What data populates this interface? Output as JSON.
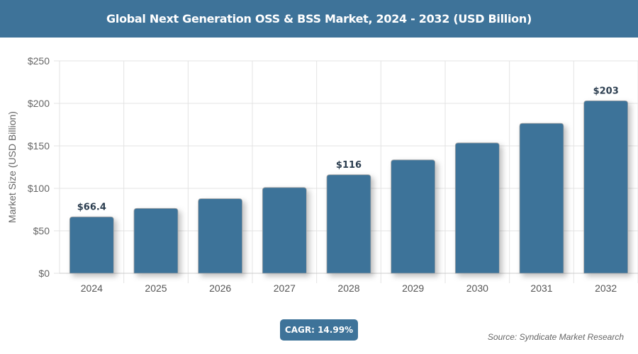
{
  "title": "Global Next Generation OSS & BSS Market, 2024 - 2032 (USD Billion)",
  "cagr_label": "CAGR: 14.99%",
  "source": "Source: Syndicate Market Research",
  "colors": {
    "bar": "#3e7399",
    "header": "#3e7399"
  },
  "chart_data": {
    "type": "bar",
    "title": "Global Next Generation OSS & BSS Market, 2024 - 2032 (USD Billion)",
    "xlabel": "",
    "ylabel": "Market Size (USD Billion)",
    "categories": [
      "2024",
      "2025",
      "2026",
      "2027",
      "2028",
      "2029",
      "2030",
      "2031",
      "2032"
    ],
    "values": [
      66.4,
      76.4,
      87.8,
      101.0,
      116,
      133.5,
      153.5,
      176.5,
      203
    ],
    "data_labels": {
      "0": "$66.4",
      "4": "$116",
      "8": "$203"
    },
    "ylim": [
      0,
      250
    ],
    "yticks": [
      0,
      50,
      100,
      150,
      200,
      250
    ],
    "ytick_labels": [
      "$0",
      "$50",
      "$100",
      "$150",
      "$200",
      "$250"
    ],
    "grid": true,
    "legend": "none"
  }
}
